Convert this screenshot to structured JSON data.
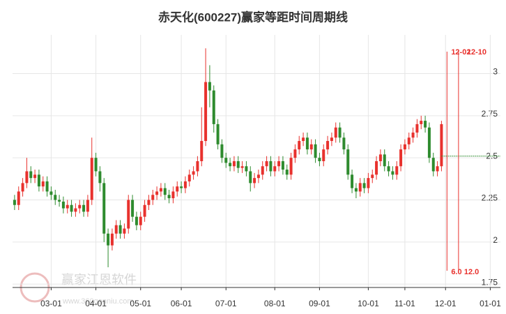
{
  "chart_data": {
    "type": "candlestick",
    "title": "赤天化(600227)赢家等距时间周期线",
    "categories": [
      null,
      null,
      null,
      null,
      null,
      null,
      null,
      null,
      null,
      "03-01",
      null,
      null,
      null,
      null,
      null,
      null,
      null,
      null,
      null,
      null,
      "04-01",
      null,
      null,
      null,
      null,
      null,
      null,
      null,
      null,
      null,
      null,
      "05-01",
      null,
      null,
      null,
      null,
      null,
      null,
      null,
      null,
      null,
      "06-01",
      null,
      null,
      null,
      null,
      null,
      null,
      null,
      null,
      null,
      null,
      "07-01",
      null,
      null,
      null,
      null,
      null,
      null,
      null,
      null,
      null,
      null,
      null,
      "08-01",
      null,
      null,
      null,
      null,
      null,
      null,
      null,
      null,
      null,
      null,
      "09-01",
      null,
      null,
      null,
      null,
      null,
      null,
      null,
      null,
      null,
      null,
      null,
      "10-01",
      null,
      null,
      null,
      null,
      null,
      null,
      null,
      null,
      "11-01",
      null,
      null,
      null,
      null,
      null,
      null,
      null,
      null,
      null,
      "12-01",
      null,
      null,
      null,
      null,
      null,
      null,
      null,
      null,
      null,
      null,
      "01-01",
      null,
      null
    ],
    "open": [
      2.25,
      2.22,
      2.3,
      2.35,
      2.42,
      2.38,
      2.4,
      2.33,
      2.36,
      2.3,
      2.28,
      2.25,
      2.24,
      2.2,
      2.22,
      2.18,
      2.2,
      2.22,
      2.18,
      2.25,
      2.5,
      2.42,
      2.35,
      2.05,
      1.98,
      2.05,
      2.1,
      2.05,
      2.08,
      2.25,
      2.15,
      2.1,
      2.15,
      2.22,
      2.25,
      2.28,
      2.3,
      2.32,
      2.28,
      2.26,
      2.3,
      2.33,
      2.32,
      2.36,
      2.4,
      2.42,
      2.48,
      2.6,
      2.95,
      2.9,
      2.7,
      2.58,
      2.5,
      2.47,
      2.45,
      2.48,
      2.44,
      2.45,
      2.42,
      2.35,
      2.38,
      2.4,
      2.45,
      2.48,
      2.42,
      2.45,
      2.48,
      2.43,
      2.4,
      2.5,
      2.55,
      2.6,
      2.62,
      2.55,
      2.58,
      2.5,
      2.48,
      2.55,
      2.6,
      2.62,
      2.68,
      2.62,
      2.55,
      2.4,
      2.32,
      2.3,
      2.35,
      2.32,
      2.38,
      2.4,
      2.48,
      2.52,
      2.45,
      2.42,
      2.4,
      2.45,
      2.55,
      2.58,
      2.62,
      2.65,
      2.7,
      2.72,
      2.68,
      2.5,
      2.42,
      2.45,
      null,
      null,
      null,
      null,
      null,
      null,
      null,
      null,
      null,
      null,
      null,
      null,
      null,
      null
    ],
    "close": [
      2.22,
      2.3,
      2.35,
      2.42,
      2.38,
      2.4,
      2.33,
      2.36,
      2.3,
      2.28,
      2.25,
      2.24,
      2.2,
      2.22,
      2.18,
      2.2,
      2.22,
      2.18,
      2.25,
      2.5,
      2.42,
      2.35,
      2.05,
      1.98,
      2.05,
      2.1,
      2.05,
      2.08,
      2.25,
      2.15,
      2.1,
      2.15,
      2.22,
      2.25,
      2.28,
      2.3,
      2.32,
      2.28,
      2.26,
      2.3,
      2.33,
      2.32,
      2.36,
      2.4,
      2.42,
      2.48,
      2.6,
      2.95,
      2.9,
      2.7,
      2.58,
      2.5,
      2.47,
      2.45,
      2.48,
      2.44,
      2.45,
      2.42,
      2.35,
      2.38,
      2.4,
      2.45,
      2.48,
      2.42,
      2.45,
      2.48,
      2.43,
      2.4,
      2.5,
      2.55,
      2.6,
      2.62,
      2.55,
      2.58,
      2.5,
      2.48,
      2.55,
      2.6,
      2.62,
      2.68,
      2.62,
      2.55,
      2.4,
      2.32,
      2.3,
      2.35,
      2.32,
      2.38,
      2.4,
      2.48,
      2.52,
      2.45,
      2.42,
      2.4,
      2.45,
      2.55,
      2.58,
      2.62,
      2.65,
      2.7,
      2.72,
      2.68,
      2.5,
      2.42,
      2.45,
      2.7,
      null,
      null,
      null,
      null,
      null,
      null,
      null,
      null,
      null,
      null,
      null,
      null,
      null,
      null
    ],
    "high": [
      2.28,
      2.33,
      2.38,
      2.5,
      2.45,
      2.43,
      2.43,
      2.39,
      2.39,
      2.33,
      2.31,
      2.28,
      2.27,
      2.25,
      2.25,
      2.23,
      2.25,
      2.25,
      2.28,
      2.62,
      2.53,
      2.45,
      2.38,
      2.08,
      2.08,
      2.13,
      2.13,
      2.11,
      2.28,
      2.28,
      2.18,
      2.18,
      2.25,
      2.28,
      2.31,
      2.33,
      2.35,
      2.35,
      2.31,
      2.33,
      2.36,
      2.36,
      2.39,
      2.43,
      2.45,
      2.51,
      2.8,
      3.15,
      3.05,
      2.93,
      2.73,
      2.61,
      2.53,
      2.5,
      2.51,
      2.51,
      2.48,
      2.48,
      2.45,
      2.41,
      2.43,
      2.48,
      2.51,
      2.51,
      2.48,
      2.51,
      2.51,
      2.46,
      2.53,
      2.58,
      2.63,
      2.65,
      2.65,
      2.61,
      2.61,
      2.53,
      2.58,
      2.63,
      2.65,
      2.71,
      2.71,
      2.65,
      2.58,
      2.43,
      2.35,
      2.38,
      2.38,
      2.41,
      2.43,
      2.51,
      2.55,
      2.55,
      2.48,
      2.45,
      2.48,
      2.58,
      2.61,
      2.65,
      2.68,
      2.73,
      2.75,
      2.75,
      2.71,
      2.53,
      2.48,
      2.72,
      null,
      null,
      null,
      null,
      null,
      null,
      null,
      null,
      null,
      null,
      null,
      null,
      null,
      null
    ],
    "low": [
      2.19,
      2.19,
      2.27,
      2.32,
      2.35,
      2.35,
      2.3,
      2.3,
      2.27,
      2.25,
      2.22,
      2.21,
      2.17,
      2.17,
      2.15,
      2.15,
      2.17,
      2.15,
      2.15,
      2.22,
      2.39,
      2.3,
      2.0,
      1.85,
      1.95,
      2.02,
      2.02,
      2.02,
      2.05,
      2.12,
      2.07,
      2.07,
      2.12,
      2.19,
      2.22,
      2.25,
      2.27,
      2.25,
      2.23,
      2.23,
      2.27,
      2.29,
      2.29,
      2.33,
      2.37,
      2.39,
      2.45,
      2.57,
      2.8,
      2.65,
      2.55,
      2.47,
      2.44,
      2.42,
      2.42,
      2.41,
      2.41,
      2.39,
      2.3,
      2.32,
      2.35,
      2.37,
      2.42,
      2.39,
      2.39,
      2.42,
      2.4,
      2.37,
      2.37,
      2.47,
      2.52,
      2.57,
      2.52,
      2.52,
      2.47,
      2.45,
      2.45,
      2.52,
      2.57,
      2.59,
      2.59,
      2.52,
      2.37,
      2.29,
      2.26,
      2.27,
      2.29,
      2.29,
      2.35,
      2.37,
      2.45,
      2.42,
      2.39,
      2.37,
      2.37,
      2.42,
      2.52,
      2.55,
      2.59,
      2.62,
      2.67,
      2.65,
      2.47,
      2.39,
      2.39,
      2.42,
      null,
      null,
      null,
      null,
      null,
      null,
      null,
      null,
      null,
      null,
      null,
      null,
      null,
      null
    ],
    "up_color": "#e8312d",
    "down_color": "#2e8b2e",
    "ylim": [
      1.73,
      3.23
    ],
    "yticks": [
      1.75,
      2,
      2.25,
      2.5,
      2.75,
      3
    ],
    "grid": true,
    "reference_line": 2.51,
    "annotations": [
      {
        "date": "12-02",
        "cycle": 6,
        "cycle_label": "6.0"
      },
      {
        "date": "12-10",
        "cycle": 12,
        "cycle_label": "12.0"
      }
    ],
    "watermark": {
      "name": "赢家江恩软件",
      "url": "www.360ganniu.com"
    }
  }
}
